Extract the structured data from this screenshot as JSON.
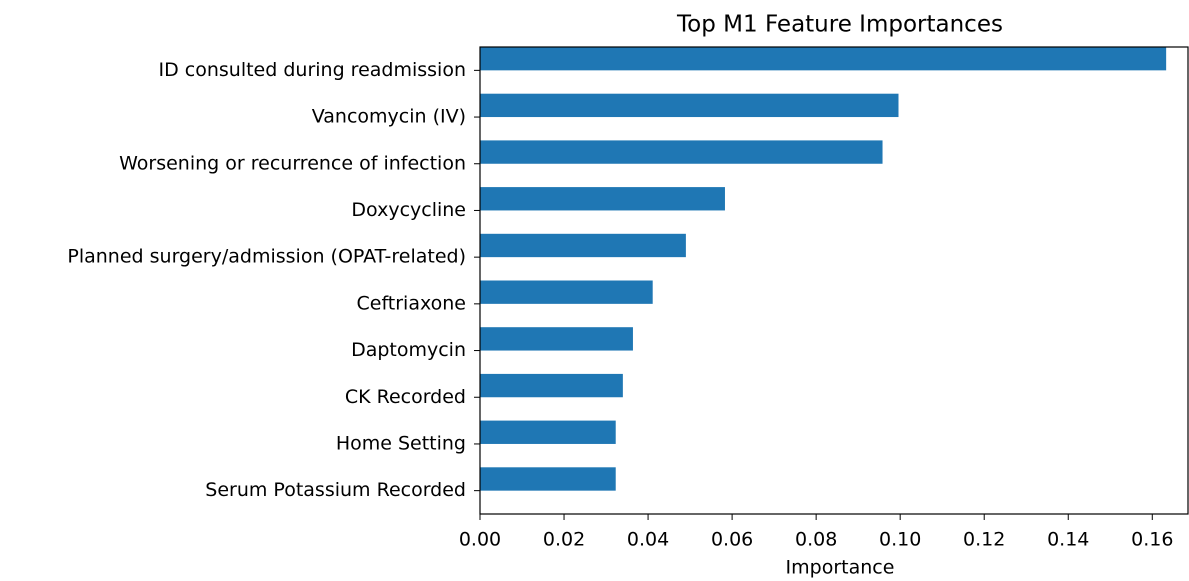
{
  "chart_data": {
    "type": "barh",
    "title": "Top M1 Feature Importances",
    "xlabel": "Importance",
    "categories": [
      "ID consulted during readmission",
      "Vancomycin (IV)",
      "Worsening or recurrence of infection",
      "Doxycycline",
      "Planned surgery/admission (OPAT-related)",
      "Ceftriaxone",
      "Daptomycin",
      "CK Recorded",
      "Home Setting",
      "Serum Potassium Recorded"
    ],
    "values": [
      0.1633,
      0.0996,
      0.0958,
      0.0583,
      0.049,
      0.0411,
      0.0364,
      0.034,
      0.0323,
      0.0323
    ],
    "color": "#1f77b4",
    "xlim": [
      0,
      0.1685
    ],
    "xticks": [
      {
        "value": 0,
        "label": "0.00"
      },
      {
        "value": 0.02,
        "label": "0.02"
      },
      {
        "value": 0.04,
        "label": "0.04"
      },
      {
        "value": 0.06,
        "label": "0.06"
      },
      {
        "value": 0.08,
        "label": "0.08"
      },
      {
        "value": 0.1,
        "label": "0.10"
      },
      {
        "value": 0.12,
        "label": "0.12"
      },
      {
        "value": 0.14,
        "label": "0.14"
      },
      {
        "value": 0.16,
        "label": "0.16"
      }
    ]
  }
}
